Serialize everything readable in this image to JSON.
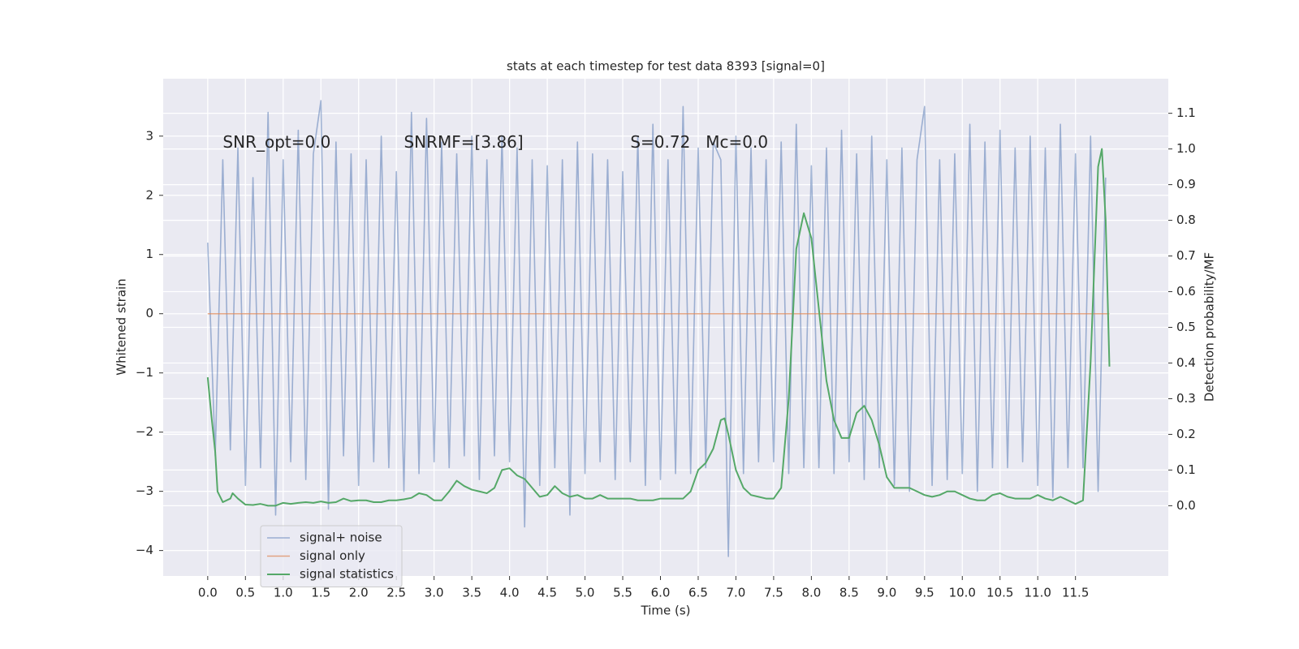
{
  "chart_data": {
    "type": "line",
    "title": "stats at each timestep for test data 8393 [signal=0]",
    "xlabel": "Time (s)",
    "ylabel": "Whitened strain",
    "y2label": "Detection probability/MF",
    "annotations": [
      "SNR_opt=0.0",
      "SNRMF=[3.86]",
      "S=0.72",
      "Mc=0.0"
    ],
    "xlim": [
      -0.59,
      12.73
    ],
    "ylim": [
      -4.43,
      3.97
    ],
    "y2lim": [
      -0.197,
      1.197
    ],
    "xticks": [
      {
        "value": 0,
        "label": "0.0"
      },
      {
        "value": 0.5,
        "label": "0.5"
      },
      {
        "value": 1,
        "label": "1.0"
      },
      {
        "value": 1.5,
        "label": "1.5"
      },
      {
        "value": 2,
        "label": "2.0"
      },
      {
        "value": 2.5,
        "label": "2.5"
      },
      {
        "value": 3,
        "label": "3.0"
      },
      {
        "value": 3.5,
        "label": "3.5"
      },
      {
        "value": 4,
        "label": "4.0"
      },
      {
        "value": 4.5,
        "label": "4.5"
      },
      {
        "value": 5,
        "label": "5.0"
      },
      {
        "value": 5.5,
        "label": "5.5"
      },
      {
        "value": 6,
        "label": "6.0"
      },
      {
        "value": 6.5,
        "label": "6.5"
      },
      {
        "value": 7,
        "label": "7.0"
      },
      {
        "value": 7.5,
        "label": "7.5"
      },
      {
        "value": 8,
        "label": "8.0"
      },
      {
        "value": 8.5,
        "label": "8.5"
      },
      {
        "value": 9,
        "label": "9.0"
      },
      {
        "value": 9.5,
        "label": "9.5"
      },
      {
        "value": 10,
        "label": "10.0"
      },
      {
        "value": 10.5,
        "label": "10.5"
      },
      {
        "value": 11,
        "label": "11.0"
      },
      {
        "value": 11.5,
        "label": "11.5"
      }
    ],
    "yticks": [
      {
        "value": -4,
        "label": "−4"
      },
      {
        "value": -3,
        "label": "−3"
      },
      {
        "value": -2,
        "label": "−2"
      },
      {
        "value": -1,
        "label": "−1"
      },
      0,
      1,
      2,
      3
    ],
    "y2ticks": [
      {
        "value": 0,
        "label": "0.0"
      },
      {
        "value": 0.1,
        "label": "0.1"
      },
      {
        "value": 0.2,
        "label": "0.2"
      },
      {
        "value": 0.3,
        "label": "0.3"
      },
      {
        "value": 0.4,
        "label": "0.4"
      },
      {
        "value": 0.5,
        "label": "0.5"
      },
      {
        "value": 0.6,
        "label": "0.6"
      },
      {
        "value": 0.7,
        "label": "0.7"
      },
      {
        "value": 0.8,
        "label": "0.8"
      },
      {
        "value": 0.9,
        "label": "0.9"
      },
      {
        "value": 1,
        "label": "1.0"
      },
      {
        "value": 1.1,
        "label": "1.1"
      }
    ],
    "grid": true,
    "legend": "lower left",
    "series": [
      {
        "name": "signal+ noise",
        "color": "#4c72b0",
        "x": [
          0,
          0.1,
          0.2,
          0.3,
          0.4,
          0.5,
          0.6,
          0.7,
          0.8,
          0.9,
          1,
          1.1,
          1.2,
          1.3,
          1.4,
          1.5,
          1.6,
          1.7,
          1.8,
          1.9,
          2,
          2.1,
          2.2,
          2.3,
          2.4,
          2.5,
          2.6,
          2.7,
          2.8,
          2.9,
          3,
          3.1,
          3.2,
          3.3,
          3.4,
          3.5,
          3.6,
          3.7,
          3.8,
          3.9,
          4,
          4.1,
          4.2,
          4.3,
          4.4,
          4.5,
          4.6,
          4.7,
          4.8,
          4.9,
          5,
          5.1,
          5.2,
          5.3,
          5.4,
          5.5,
          5.6,
          5.7,
          5.8,
          5.9,
          6,
          6.1,
          6.2,
          6.3,
          6.4,
          6.5,
          6.6,
          6.7,
          6.8,
          6.9,
          7,
          7.1,
          7.2,
          7.3,
          7.4,
          7.5,
          7.6,
          7.7,
          7.8,
          7.9,
          8,
          8.1,
          8.2,
          8.3,
          8.4,
          8.5,
          8.6,
          8.7,
          8.8,
          8.9,
          9,
          9.1,
          9.2,
          9.3,
          9.4,
          9.5,
          9.6,
          9.7,
          9.8,
          9.9,
          10,
          10.1,
          10.2,
          10.3,
          10.4,
          10.5,
          10.6,
          10.7,
          10.8,
          10.9,
          11,
          11.1,
          11.2,
          11.3,
          11.4,
          11.5,
          11.6,
          11.7,
          11.8,
          11.9
        ],
        "values": [
          1.2,
          -2.4,
          2.6,
          -2.3,
          2.8,
          -2.9,
          2.3,
          -2.6,
          3.4,
          -3.4,
          2.6,
          -2.5,
          3.1,
          -2.8,
          2.7,
          3.6,
          -3.3,
          2.9,
          -2.4,
          2.7,
          -2.9,
          2.6,
          -2.5,
          3.0,
          -2.6,
          2.4,
          -3.0,
          3.4,
          -2.7,
          3.3,
          -2.5,
          2.9,
          -2.6,
          2.7,
          -2.4,
          3.0,
          -2.8,
          2.6,
          -2.4,
          3.0,
          -2.5,
          2.8,
          -3.6,
          2.6,
          -2.9,
          2.5,
          -2.6,
          2.6,
          -3.4,
          2.9,
          -2.7,
          2.7,
          -2.5,
          2.6,
          -2.8,
          2.4,
          -2.5,
          3.0,
          -2.9,
          3.2,
          -2.8,
          2.6,
          -2.7,
          3.5,
          -2.7,
          2.8,
          -2.6,
          2.9,
          2.6,
          -4.1,
          3.0,
          -2.7,
          2.8,
          -2.5,
          2.6,
          -2.5,
          2.9,
          -2.7,
          3.2,
          -2.6,
          2.5,
          -2.6,
          2.8,
          -2.7,
          3.1,
          -2.5,
          2.7,
          -2.8,
          3.0,
          -2.6,
          2.6,
          -2.9,
          2.8,
          -3.0,
          2.6,
          3.5,
          -2.9,
          2.6,
          -2.8,
          2.7,
          -2.7,
          3.2,
          -3.0,
          2.9,
          -2.6,
          3.1,
          -2.6,
          2.8,
          -2.5,
          3.0,
          -2.9,
          2.8,
          -3.1,
          3.2,
          -2.6,
          2.7,
          -2.6,
          3.0,
          -3.0,
          2.3
        ]
      },
      {
        "name": "signal only",
        "color": "#dd8452",
        "x": [
          0,
          11.95
        ],
        "values": [
          0,
          0
        ]
      },
      {
        "name": "signal statistics",
        "color": "#55a868",
        "axis": "y2",
        "x": [
          0,
          0.05,
          0.1,
          0.13,
          0.2,
          0.3,
          0.33,
          0.4,
          0.5,
          0.6,
          0.7,
          0.8,
          0.9,
          1,
          1.1,
          1.2,
          1.3,
          1.4,
          1.5,
          1.6,
          1.7,
          1.8,
          1.9,
          2,
          2.1,
          2.2,
          2.3,
          2.4,
          2.5,
          2.6,
          2.7,
          2.8,
          2.9,
          3,
          3.1,
          3.2,
          3.3,
          3.4,
          3.5,
          3.6,
          3.7,
          3.8,
          3.9,
          4,
          4.1,
          4.2,
          4.3,
          4.4,
          4.5,
          4.6,
          4.7,
          4.8,
          4.9,
          5,
          5.1,
          5.2,
          5.3,
          5.4,
          5.5,
          5.6,
          5.7,
          5.8,
          5.9,
          6,
          6.1,
          6.2,
          6.3,
          6.4,
          6.5,
          6.6,
          6.7,
          6.8,
          6.85,
          6.9,
          7,
          7.1,
          7.2,
          7.3,
          7.4,
          7.5,
          7.6,
          7.7,
          7.8,
          7.9,
          8,
          8.1,
          8.2,
          8.3,
          8.4,
          8.5,
          8.6,
          8.7,
          8.8,
          8.9,
          9,
          9.1,
          9.2,
          9.3,
          9.4,
          9.5,
          9.6,
          9.7,
          9.8,
          9.9,
          10,
          10.1,
          10.2,
          10.3,
          10.4,
          10.5,
          10.6,
          10.7,
          10.8,
          10.9,
          11,
          11.1,
          11.2,
          11.3,
          11.4,
          11.5,
          11.6,
          11.7,
          11.8,
          11.85,
          11.9,
          11.95
        ],
        "values": [
          0.36,
          0.25,
          0.15,
          0.04,
          0.01,
          0.02,
          0.035,
          0.02,
          0.003,
          0.002,
          0.005,
          0,
          0,
          0.008,
          0.005,
          0.008,
          0.01,
          0.008,
          0.012,
          0.008,
          0.01,
          0.02,
          0.013,
          0.015,
          0.015,
          0.01,
          0.01,
          0.015,
          0.015,
          0.018,
          0.022,
          0.035,
          0.03,
          0.015,
          0.015,
          0.04,
          0.07,
          0.055,
          0.045,
          0.04,
          0.035,
          0.05,
          0.1,
          0.105,
          0.085,
          0.075,
          0.05,
          0.025,
          0.03,
          0.055,
          0.035,
          0.025,
          0.03,
          0.02,
          0.02,
          0.03,
          0.02,
          0.02,
          0.02,
          0.02,
          0.015,
          0.015,
          0.015,
          0.02,
          0.02,
          0.02,
          0.02,
          0.04,
          0.1,
          0.12,
          0.16,
          0.24,
          0.245,
          0.2,
          0.1,
          0.05,
          0.03,
          0.025,
          0.02,
          0.02,
          0.05,
          0.3,
          0.72,
          0.82,
          0.75,
          0.55,
          0.35,
          0.24,
          0.19,
          0.19,
          0.26,
          0.28,
          0.24,
          0.17,
          0.08,
          0.05,
          0.05,
          0.05,
          0.04,
          0.03,
          0.025,
          0.03,
          0.04,
          0.04,
          0.03,
          0.02,
          0.015,
          0.015,
          0.03,
          0.035,
          0.025,
          0.02,
          0.02,
          0.02,
          0.03,
          0.02,
          0.015,
          0.025,
          0.015,
          0.005,
          0.015,
          0.4,
          0.95,
          1.0,
          0.8,
          0.39
        ]
      }
    ]
  }
}
